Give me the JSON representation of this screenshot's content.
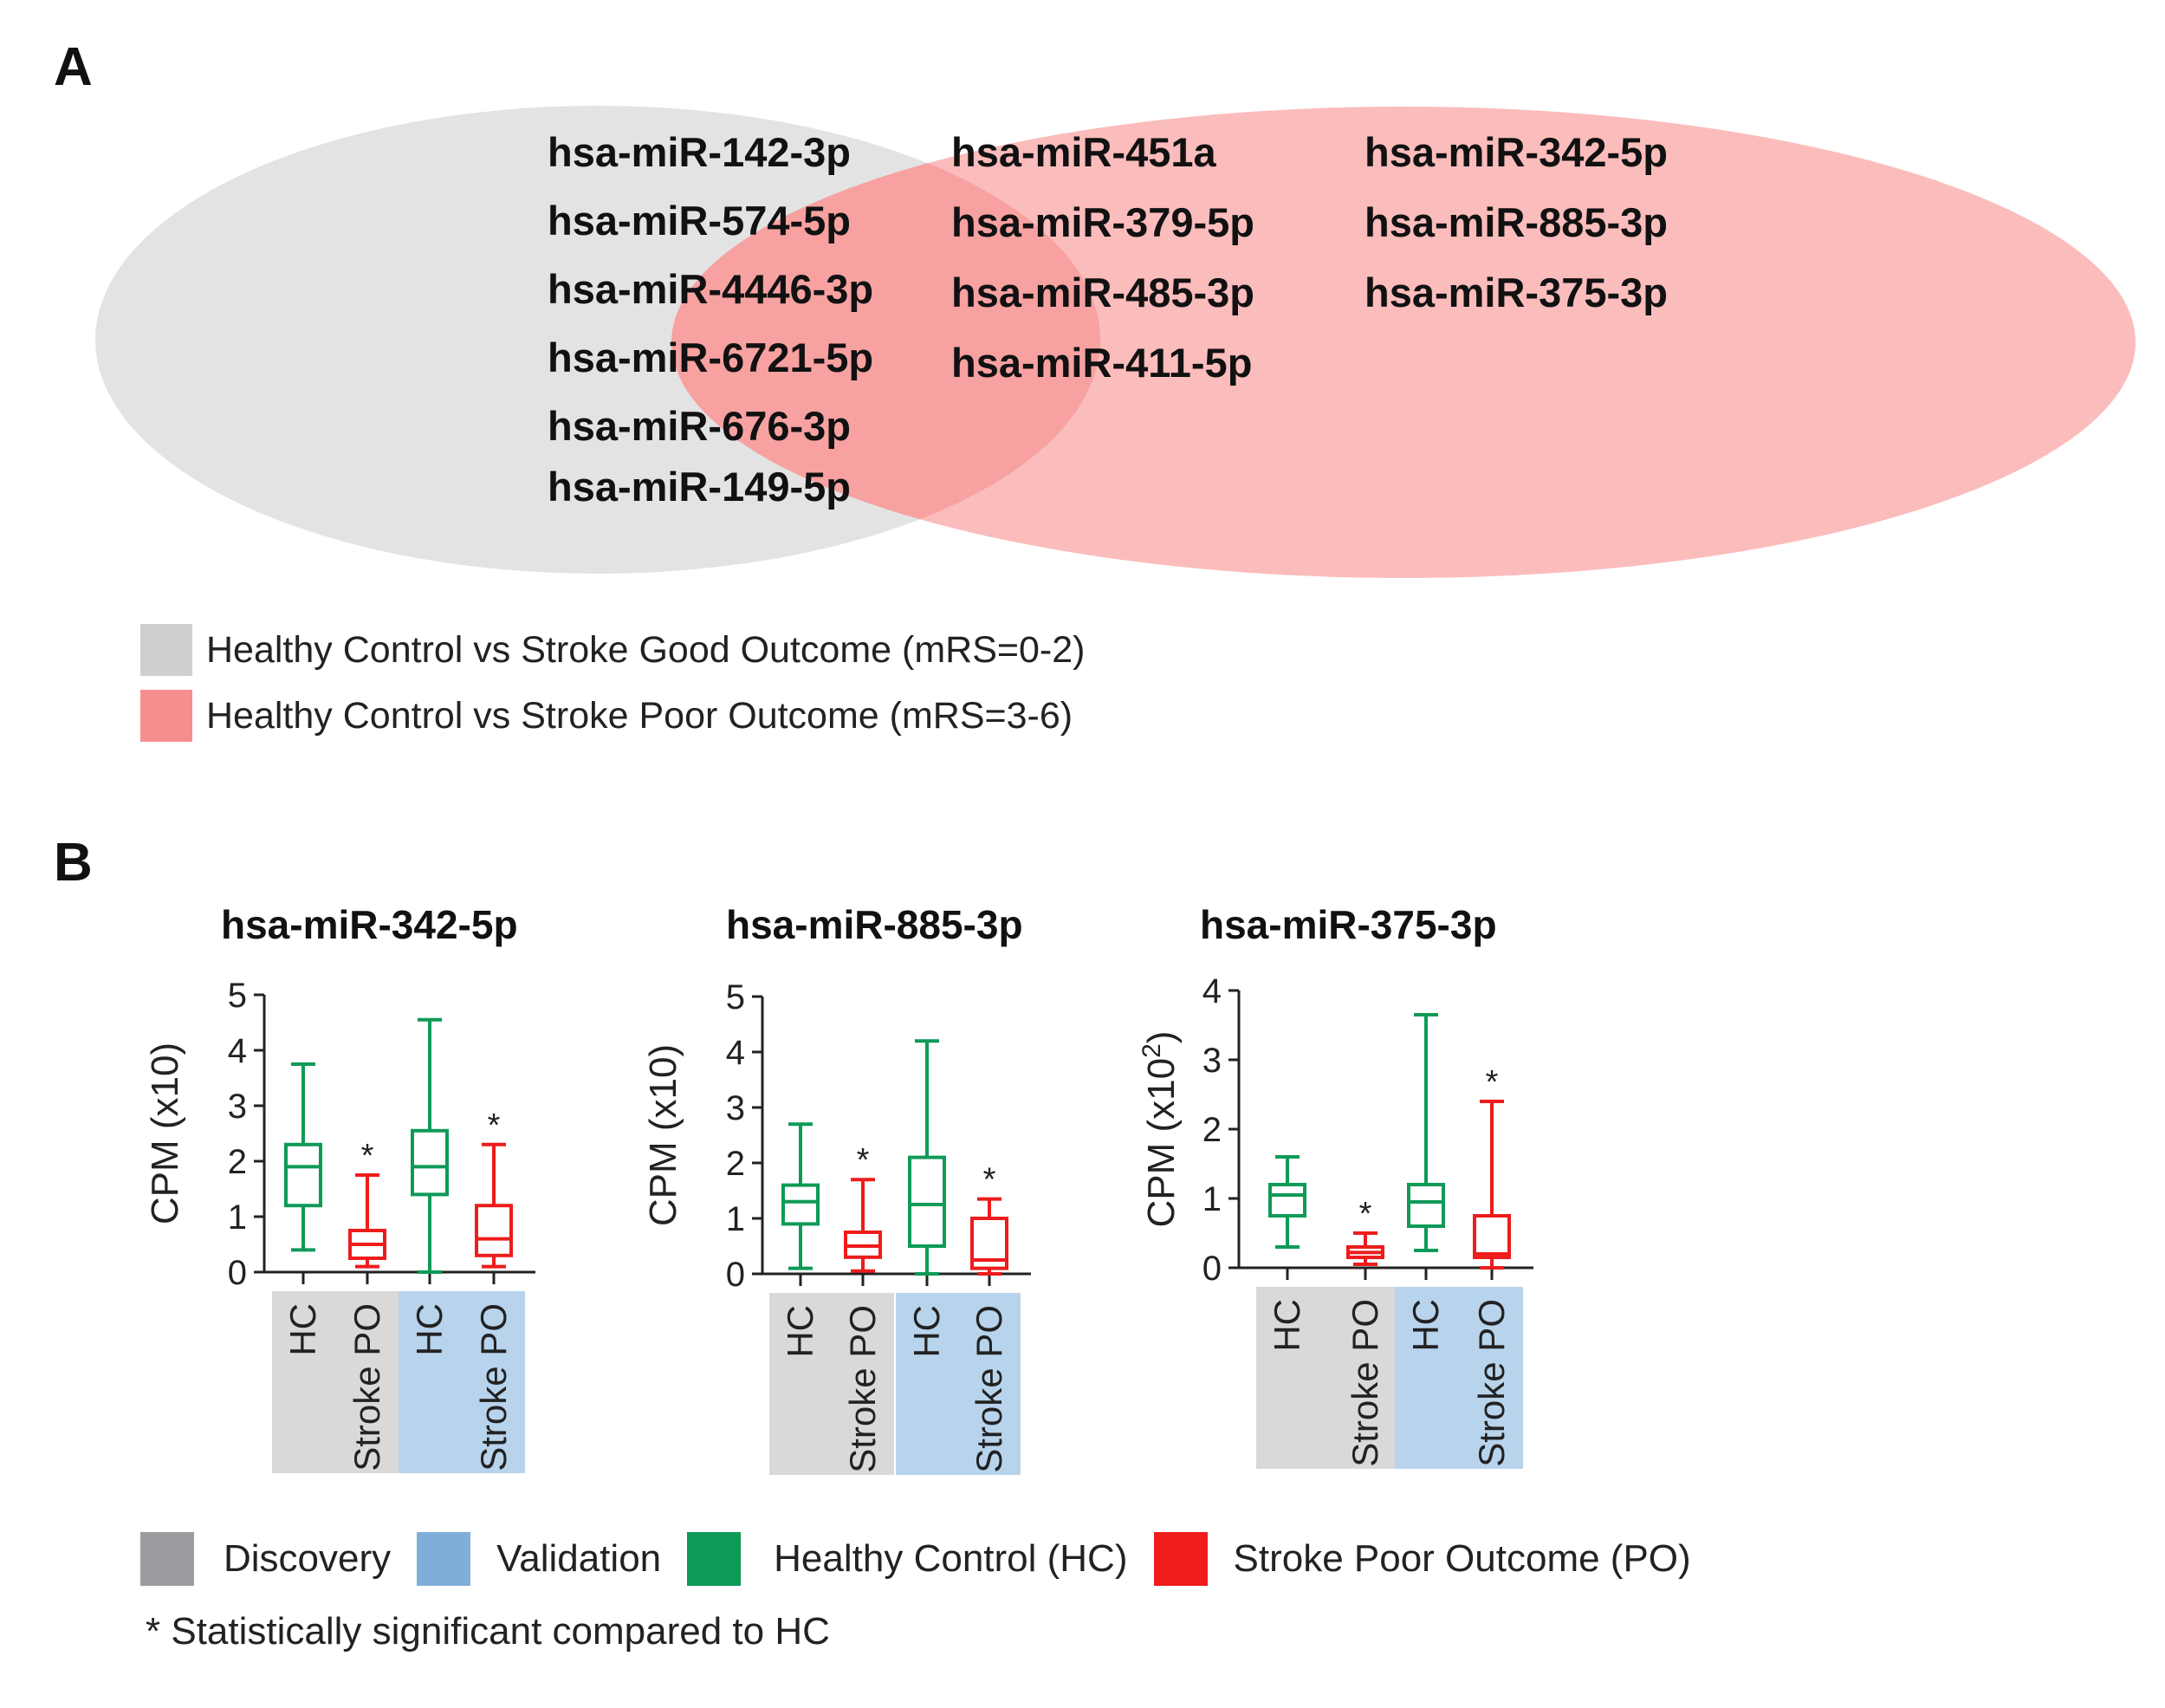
{
  "panel_a": {
    "letter": "A",
    "venn": {
      "left_only": [
        "hsa-miR-142-3p",
        "hsa-miR-574-5p",
        "hsa-miR-4446-3p",
        "hsa-miR-6721-5p",
        "hsa-miR-676-3p",
        "hsa-miR-149-5p"
      ],
      "overlap": [
        "hsa-miR-451a",
        "hsa-miR-379-5p",
        "hsa-miR-485-3p",
        "hsa-miR-411-5p"
      ],
      "right_only": [
        "hsa-miR-342-5p",
        "hsa-miR-885-3p",
        "hsa-miR-375-3p"
      ]
    },
    "legend": [
      {
        "label": "Healthy Control vs Stroke Good Outcome (mRS=0-2)",
        "color": "#cfcfcf"
      },
      {
        "label": "Healthy Control vs Stroke Poor Outcome (mRS=3-6)",
        "color": "#f58f8f"
      }
    ],
    "colors": {
      "left_circle": "#e3e3e3",
      "right_circle": "#fbbcbc",
      "overlap": "#f7a1a1"
    }
  },
  "panel_b": {
    "letter": "B",
    "legend": [
      {
        "label": "Discovery",
        "color": "#9b9ba0"
      },
      {
        "label": "Validation",
        "color": "#7fafd9"
      },
      {
        "label": "Healthy Control (HC)",
        "color": "#0e9a57"
      },
      {
        "label": "Stroke Poor Outcome (PO)",
        "color": "#ee1c1c"
      }
    ],
    "footnote_symbol": "*",
    "footnote_text": "Statistically significant compared to HC"
  },
  "chart_data": [
    {
      "type": "box",
      "title": "hsa-miR-342-5p",
      "ylabel": "CPM (x10)",
      "ylim": [
        0,
        5
      ],
      "yticks": [
        "0",
        "1",
        "2",
        "3",
        "4",
        "5"
      ],
      "categories": [
        "HC",
        "Stroke PO",
        "HC",
        "Stroke PO"
      ],
      "groups": [
        {
          "name": "Discovery",
          "color": "#d9d9d9",
          "members": [
            0,
            1
          ]
        },
        {
          "name": "Validation",
          "color": "#b8d3ec",
          "members": [
            2,
            3
          ]
        }
      ],
      "boxes": [
        {
          "min": 0.4,
          "q1": 1.2,
          "median": 1.9,
          "q3": 2.3,
          "max": 3.75,
          "color": "#0e9a57",
          "sig": false
        },
        {
          "min": 0.1,
          "q1": 0.25,
          "median": 0.5,
          "q3": 0.75,
          "max": 1.75,
          "color": "#ee1c1c",
          "sig": true
        },
        {
          "min": 0.0,
          "q1": 1.4,
          "median": 1.9,
          "q3": 2.55,
          "max": 4.55,
          "color": "#0e9a57",
          "sig": false
        },
        {
          "min": 0.1,
          "q1": 0.3,
          "median": 0.6,
          "q3": 1.2,
          "max": 2.3,
          "color": "#ee1c1c",
          "sig": true
        }
      ]
    },
    {
      "type": "box",
      "title": "hsa-miR-885-3p",
      "ylabel": "CPM (x10)",
      "ylim": [
        0,
        5
      ],
      "yticks": [
        "0",
        "1",
        "2",
        "3",
        "4",
        "5"
      ],
      "categories": [
        "HC",
        "Stroke PO",
        "HC",
        "Stroke PO"
      ],
      "groups": [
        {
          "name": "Discovery",
          "color": "#d9d9d9",
          "members": [
            0,
            1
          ]
        },
        {
          "name": "Validation",
          "color": "#b8d3ec",
          "members": [
            2,
            3
          ]
        }
      ],
      "boxes": [
        {
          "min": 0.1,
          "q1": 0.9,
          "median": 1.3,
          "q3": 1.6,
          "max": 2.7,
          "color": "#0e9a57",
          "sig": false
        },
        {
          "min": 0.05,
          "q1": 0.3,
          "median": 0.5,
          "q3": 0.75,
          "max": 1.7,
          "color": "#ee1c1c",
          "sig": true
        },
        {
          "min": 0.0,
          "q1": 0.5,
          "median": 1.25,
          "q3": 2.1,
          "max": 4.2,
          "color": "#0e9a57",
          "sig": false
        },
        {
          "min": 0.0,
          "q1": 0.1,
          "median": 0.25,
          "q3": 1.0,
          "max": 1.35,
          "color": "#ee1c1c",
          "sig": true
        }
      ]
    },
    {
      "type": "box",
      "title": "hsa-miR-375-3p",
      "ylabel": "CPM (x10",
      "ylabel_sup": "2",
      "ylabel_end": ")",
      "ylim": [
        0,
        4
      ],
      "yticks": [
        "0",
        "1",
        "2",
        "3",
        "4"
      ],
      "categories": [
        "HC",
        "Stroke PO",
        "HC",
        "Stroke PO"
      ],
      "groups": [
        {
          "name": "Discovery",
          "color": "#d9d9d9",
          "members": [
            0,
            1
          ]
        },
        {
          "name": "Validation",
          "color": "#b8d3ec",
          "members": [
            2,
            3
          ]
        }
      ],
      "boxes": [
        {
          "min": 0.3,
          "q1": 0.75,
          "median": 1.05,
          "q3": 1.2,
          "max": 1.6,
          "color": "#0e9a57",
          "sig": false
        },
        {
          "min": 0.05,
          "q1": 0.15,
          "median": 0.22,
          "q3": 0.3,
          "max": 0.5,
          "color": "#ee1c1c",
          "sig": true
        },
        {
          "min": 0.25,
          "q1": 0.6,
          "median": 0.95,
          "q3": 1.2,
          "max": 3.65,
          "color": "#0e9a57",
          "sig": false
        },
        {
          "min": 0.0,
          "q1": 0.15,
          "median": 0.2,
          "q3": 0.75,
          "max": 2.4,
          "color": "#ee1c1c",
          "sig": true
        }
      ]
    }
  ]
}
